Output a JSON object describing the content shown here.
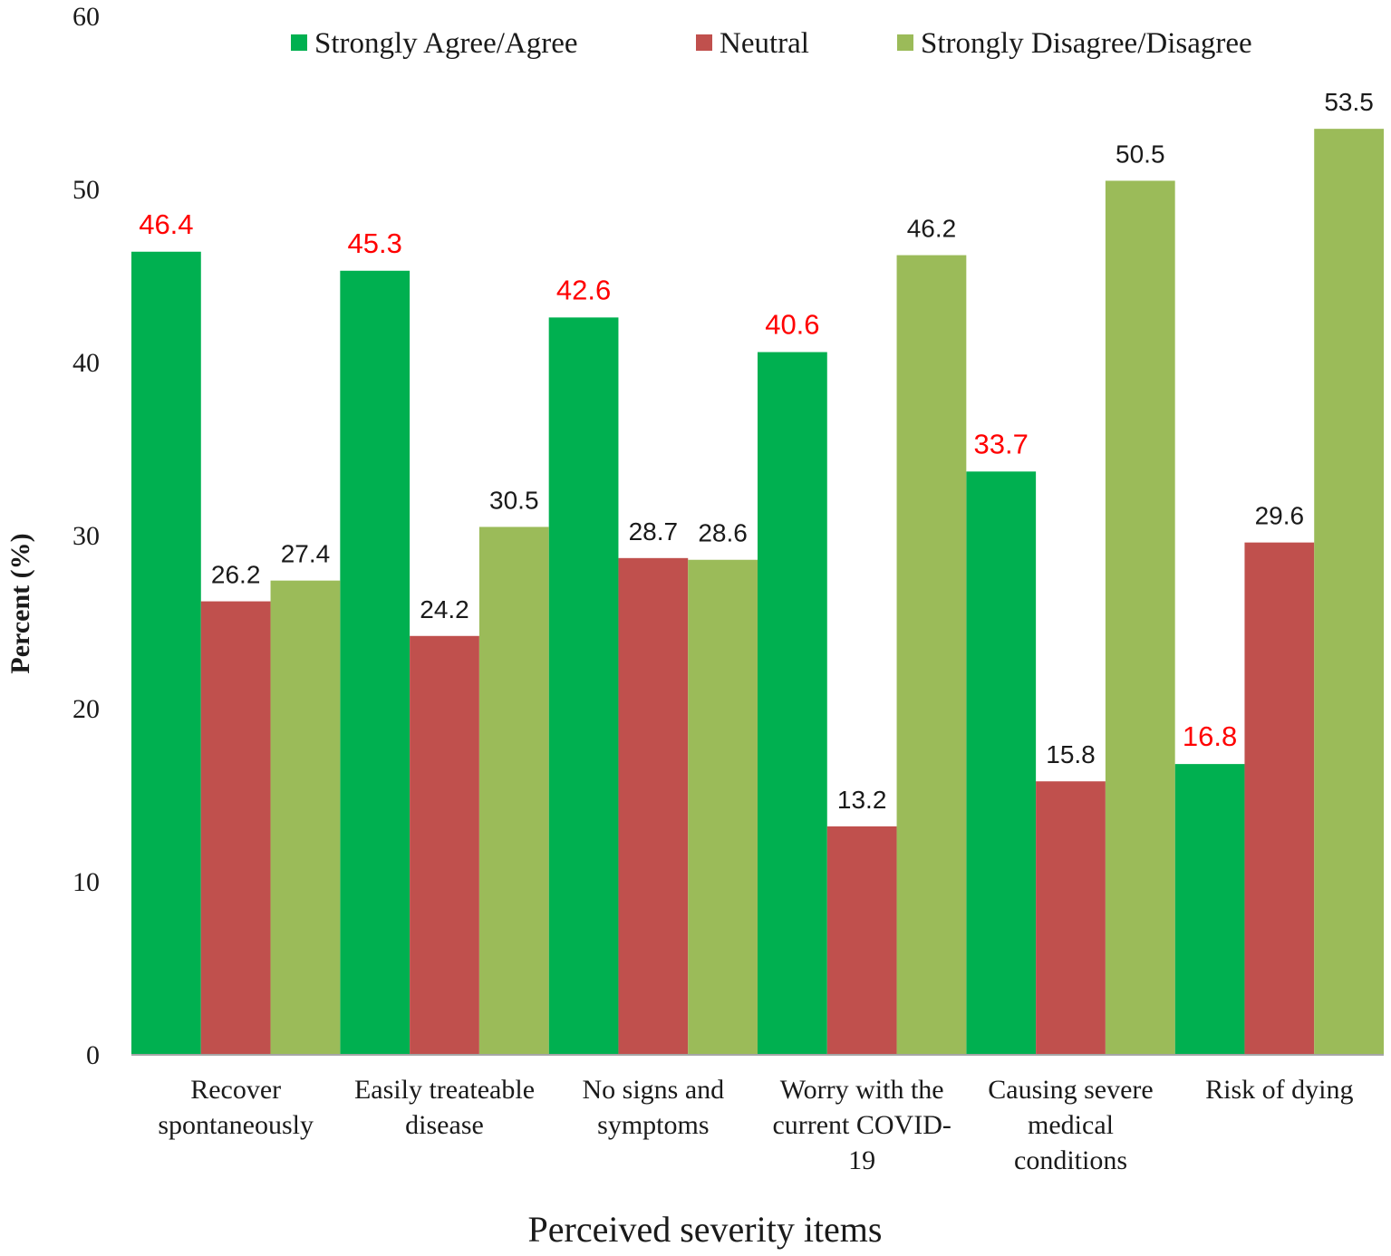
{
  "chart_data": {
    "type": "bar",
    "title": "",
    "xlabel": "Perceived severity items",
    "ylabel": "Percent (%)",
    "ylim": [
      0,
      60
    ],
    "yticks": [
      0,
      10,
      20,
      30,
      40,
      50,
      60
    ],
    "grid": false,
    "legend_position": "top",
    "categories": [
      [
        "Recover",
        "spontaneously"
      ],
      [
        "Easily treateable",
        "disease"
      ],
      [
        "No signs and",
        "symptoms"
      ],
      [
        "Worry with the",
        "current COVID-",
        "19"
      ],
      [
        "Causing severe",
        "medical",
        "conditions"
      ],
      [
        "Risk of dying"
      ]
    ],
    "series": [
      {
        "name": "Strongly Agree/Agree",
        "color": "#00b050",
        "label_color": "#ff0000",
        "values": [
          46.4,
          45.3,
          42.6,
          40.6,
          33.7,
          16.8
        ]
      },
      {
        "name": "Neutral",
        "color": "#c0504d",
        "label_color": "#1a1a1a",
        "values": [
          26.2,
          24.2,
          28.7,
          13.2,
          15.8,
          29.6
        ]
      },
      {
        "name": "Strongly Disagree/Disagree",
        "color": "#9bbb59",
        "label_color": "#1a1a1a",
        "values": [
          27.4,
          30.5,
          28.6,
          46.2,
          50.5,
          53.5
        ]
      }
    ]
  }
}
